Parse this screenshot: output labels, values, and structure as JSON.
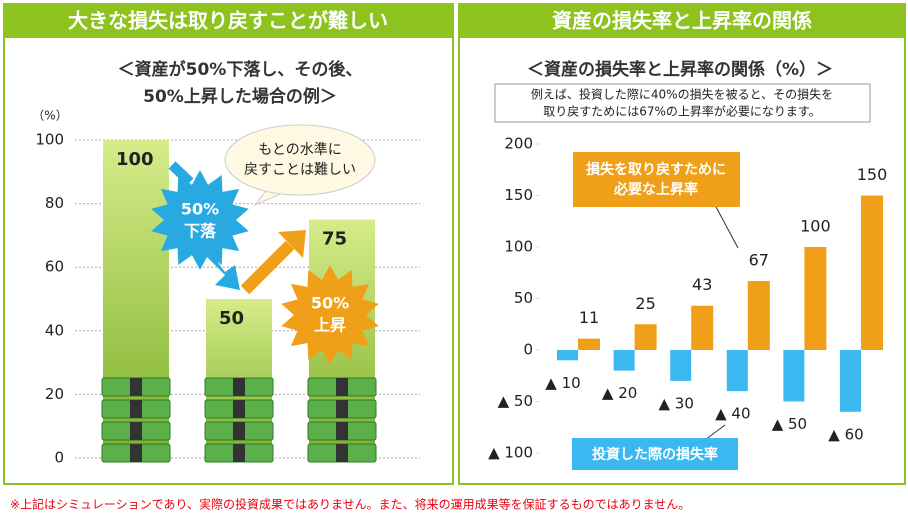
{
  "chart_data": [
    {
      "type": "bar",
      "header": "大きな損失は取り戻すことが難しい",
      "subtitle": [
        "＜資産が50%下落し、その後、",
        "50%上昇した場合の例＞"
      ],
      "y_label": "（%）",
      "values": [
        100,
        50,
        75
      ],
      "ylim": [
        0,
        100
      ],
      "yticks": [
        0,
        20,
        40,
        60,
        80,
        100
      ],
      "grid": true,
      "annotations": {
        "callout": [
          "もとの水準に",
          "戻すことは難しい"
        ],
        "drop": [
          "50%",
          "下落"
        ],
        "rise": [
          "50%",
          "上昇"
        ]
      }
    },
    {
      "type": "grouped_bar",
      "header": "資産の損失率と上昇率の関係",
      "subtitle": "＜資産の損失率と上昇率の関係（%）＞",
      "note": [
        "例えば、投資した際に40%の損失を被ると、その損失を",
        "取り戻すためには67%の上昇率が必要になります。"
      ],
      "ylim": [
        -100,
        200
      ],
      "yticks": [
        {
          "value": -100,
          "label": "▲ 100"
        },
        {
          "value": -50,
          "label": "▲ 50"
        },
        0,
        50,
        100,
        150,
        200
      ],
      "series": [
        {
          "name": "投資した際の損失率",
          "color": "#3cb8f0",
          "values": [
            -10,
            -20,
            -30,
            -40,
            -50,
            -60
          ],
          "value_labels": [
            "▲ 10",
            "▲ 20",
            "▲ 30",
            "▲ 40",
            "▲ 50",
            "▲ 60"
          ]
        },
        {
          "name": [
            "損失を取り戻すために",
            "必要な上昇率"
          ],
          "color": "#f0a018",
          "values": [
            11,
            25,
            43,
            67,
            100,
            150
          ]
        }
      ]
    }
  ],
  "footnote": "※上記はシミュレーションであり、実際の投資成果ではありません。また、将来の運用成果等を保証するものではありません。"
}
